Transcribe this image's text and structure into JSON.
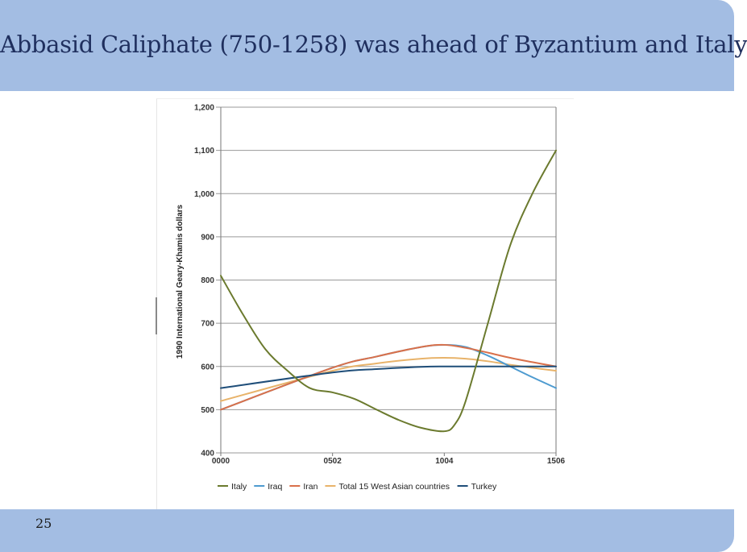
{
  "slide": {
    "title": "Abbasid Caliphate (750-1258) was ahead of Byzantium and Italy",
    "number": "25"
  },
  "colors": {
    "header": "#a3bde3",
    "title_text": "#1f2f5e"
  },
  "chart_data": {
    "type": "line",
    "title": "",
    "xlabel": "",
    "ylabel": "1990 International Geary-Khamis dollars",
    "x_ticks": [
      "0000",
      "0502",
      "1004",
      "1506"
    ],
    "x_numeric": [
      0,
      502,
      1004,
      1506
    ],
    "ylim": [
      400,
      1200
    ],
    "y_ticks": [
      400,
      500,
      600,
      700,
      800,
      900,
      1000,
      1100,
      1200
    ],
    "y_tick_labels": [
      "400",
      "500",
      "600",
      "700",
      "800",
      "900",
      "1,000",
      "1,100",
      "1,200"
    ],
    "grid": true,
    "legend_position": "bottom",
    "series": [
      {
        "name": "Italy",
        "color": "#6b7a2e",
        "points": [
          [
            0,
            810
          ],
          [
            100,
            720
          ],
          [
            200,
            640
          ],
          [
            300,
            590
          ],
          [
            400,
            550
          ],
          [
            502,
            540
          ],
          [
            600,
            525
          ],
          [
            700,
            500
          ],
          [
            800,
            476
          ],
          [
            900,
            458
          ],
          [
            1004,
            450
          ],
          [
            1050,
            465
          ],
          [
            1100,
            520
          ],
          [
            1200,
            700
          ],
          [
            1300,
            880
          ],
          [
            1400,
            1000
          ],
          [
            1506,
            1100
          ]
        ]
      },
      {
        "name": "Iraq",
        "color": "#4e9bd0",
        "points": [
          [
            0,
            500
          ],
          [
            502,
            597
          ],
          [
            700,
            623
          ],
          [
            900,
            645
          ],
          [
            1004,
            650
          ],
          [
            1100,
            645
          ],
          [
            1200,
            625
          ],
          [
            1300,
            600
          ],
          [
            1400,
            575
          ],
          [
            1506,
            550
          ]
        ]
      },
      {
        "name": "Iran",
        "color": "#d9704a",
        "points": [
          [
            0,
            500
          ],
          [
            502,
            597
          ],
          [
            700,
            623
          ],
          [
            900,
            645
          ],
          [
            1004,
            650
          ],
          [
            1100,
            643
          ],
          [
            1200,
            632
          ],
          [
            1300,
            620
          ],
          [
            1400,
            610
          ],
          [
            1506,
            600
          ]
        ]
      },
      {
        "name": "Total 15 West Asian countries",
        "color": "#e8b36a",
        "points": [
          [
            0,
            520
          ],
          [
            502,
            590
          ],
          [
            700,
            607
          ],
          [
            900,
            618
          ],
          [
            1004,
            620
          ],
          [
            1100,
            618
          ],
          [
            1200,
            612
          ],
          [
            1300,
            604
          ],
          [
            1400,
            597
          ],
          [
            1506,
            590
          ]
        ]
      },
      {
        "name": "Turkey",
        "color": "#1f4e79",
        "points": [
          [
            0,
            550
          ],
          [
            502,
            586
          ],
          [
            700,
            594
          ],
          [
            900,
            599
          ],
          [
            1004,
            600
          ],
          [
            1200,
            600
          ],
          [
            1506,
            600
          ]
        ]
      }
    ]
  }
}
